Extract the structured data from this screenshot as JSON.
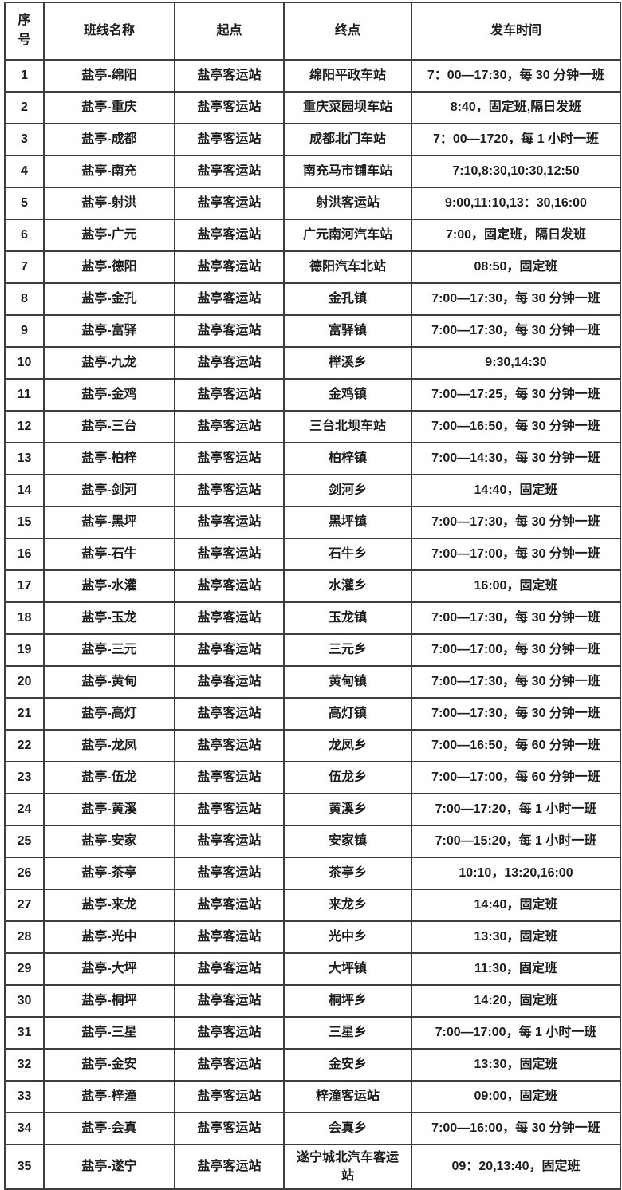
{
  "table": {
    "headers": {
      "serial": "序号",
      "route_name": "班线名称",
      "origin": "起点",
      "destination": "终点",
      "departure_time": "发车时间"
    },
    "rows": [
      {
        "no": "1",
        "route": "盐亭-绵阳",
        "origin": "盐亭客运站",
        "destination": "绵阳平政车站",
        "time": "7：00—17:30，每 30 分钟一班"
      },
      {
        "no": "2",
        "route": "盐亭-重庆",
        "origin": "盐亭客运站",
        "destination": "重庆菜园坝车站",
        "time": "8:40，固定班,隔日发班"
      },
      {
        "no": "3",
        "route": "盐亭-成都",
        "origin": "盐亭客运站",
        "destination": "成都北门车站",
        "time": "7：00—1720，每 1 小时一班"
      },
      {
        "no": "4",
        "route": "盐亭-南充",
        "origin": "盐亭客运站",
        "destination": "南充马市铺车站",
        "time": "7:10,8:30,10:30,12:50"
      },
      {
        "no": "5",
        "route": "盐亭-射洪",
        "origin": "盐亭客运站",
        "destination": "射洪客运站",
        "time": "9:00,11:10,13：30,16:00"
      },
      {
        "no": "6",
        "route": "盐亭-广元",
        "origin": "盐亭客运站",
        "destination": "广元南河汽车站",
        "time": "7:00，固定班，隔日发班"
      },
      {
        "no": "7",
        "route": "盐亭-德阳",
        "origin": "盐亭客运站",
        "destination": "德阳汽车北站",
        "time": "08:50，固定班"
      },
      {
        "no": "8",
        "route": "盐亭-金孔",
        "origin": "盐亭客运站",
        "destination": "金孔镇",
        "time": "7:00—17:30，每 30 分钟一班"
      },
      {
        "no": "9",
        "route": "盐亭-富驿",
        "origin": "盐亭客运站",
        "destination": "富驿镇",
        "time": "7:00—17:30，每 30 分钟一班"
      },
      {
        "no": "10",
        "route": "盐亭-九龙",
        "origin": "盐亭客运站",
        "destination": "榉溪乡",
        "time": "9:30,14:30"
      },
      {
        "no": "11",
        "route": "盐亭-金鸡",
        "origin": "盐亭客运站",
        "destination": "金鸡镇",
        "time": "7:00—17:25，每 30 分钟一班"
      },
      {
        "no": "12",
        "route": "盐亭-三台",
        "origin": "盐亭客运站",
        "destination": "三台北坝车站",
        "time": "7:00—16:50，每 30 分钟一班"
      },
      {
        "no": "13",
        "route": "盐亭-柏梓",
        "origin": "盐亭客运站",
        "destination": "柏梓镇",
        "time": "7:00—14:30，每 30 分钟一班"
      },
      {
        "no": "14",
        "route": "盐亭-剑河",
        "origin": "盐亭客运站",
        "destination": "剑河乡",
        "time": "14:40，固定班"
      },
      {
        "no": "15",
        "route": "盐亭-黑坪",
        "origin": "盐亭客运站",
        "destination": "黑坪镇",
        "time": "7:00—17:30，每 30 分钟一班"
      },
      {
        "no": "16",
        "route": "盐亭-石牛",
        "origin": "盐亭客运站",
        "destination": "石牛乡",
        "time": "7:00—17:00，每 30 分钟一班"
      },
      {
        "no": "17",
        "route": "盐亭-水灌",
        "origin": "盐亭客运站",
        "destination": "水灌乡",
        "time": "16:00，固定班"
      },
      {
        "no": "18",
        "route": "盐亭-玉龙",
        "origin": "盐亭客运站",
        "destination": "玉龙镇",
        "time": "7:00—17:30，每 30 分钟一班"
      },
      {
        "no": "19",
        "route": "盐亭-三元",
        "origin": "盐亭客运站",
        "destination": "三元乡",
        "time": "7:00—17:00，每 30 分钟一班"
      },
      {
        "no": "20",
        "route": "盐亭-黄甸",
        "origin": "盐亭客运站",
        "destination": "黄甸镇",
        "time": "7:00—17:30，每 30 分钟一班"
      },
      {
        "no": "21",
        "route": "盐亭-高灯",
        "origin": "盐亭客运站",
        "destination": "高灯镇",
        "time": "7:00—17:30，每 30 分钟一班"
      },
      {
        "no": "22",
        "route": "盐亭-龙凤",
        "origin": "盐亭客运站",
        "destination": "龙凤乡",
        "time": "7:00—16:50，每 60 分钟一班"
      },
      {
        "no": "23",
        "route": "盐亭-伍龙",
        "origin": "盐亭客运站",
        "destination": "伍龙乡",
        "time": "7:00—17:00，每 60 分钟一班"
      },
      {
        "no": "24",
        "route": "盐亭-黄溪",
        "origin": "盐亭客运站",
        "destination": "黄溪乡",
        "time": "7:00—17:20，每 1 小时一班"
      },
      {
        "no": "25",
        "route": "盐亭-安家",
        "origin": "盐亭客运站",
        "destination": "安家镇",
        "time": "7:00—15:20，每 1 小时一班"
      },
      {
        "no": "26",
        "route": "盐亭-茶亭",
        "origin": "盐亭客运站",
        "destination": "茶亭乡",
        "time": "10:10，13:20,16:00"
      },
      {
        "no": "27",
        "route": "盐亭-来龙",
        "origin": "盐亭客运站",
        "destination": "来龙乡",
        "time": "14:40，固定班"
      },
      {
        "no": "28",
        "route": "盐亭-光中",
        "origin": "盐亭客运站",
        "destination": "光中乡",
        "time": "13:30，固定班"
      },
      {
        "no": "29",
        "route": "盐亭-大坪",
        "origin": "盐亭客运站",
        "destination": "大坪镇",
        "time": "11:30，固定班"
      },
      {
        "no": "30",
        "route": "盐亭-桐坪",
        "origin": "盐亭客运站",
        "destination": "桐坪乡",
        "time": "14:20，固定班"
      },
      {
        "no": "31",
        "route": "盐亭-三星",
        "origin": "盐亭客运站",
        "destination": "三星乡",
        "time": "7:00—17:00，每 1 小时一班"
      },
      {
        "no": "32",
        "route": "盐亭-金安",
        "origin": "盐亭客运站",
        "destination": "金安乡",
        "time": "13:30，固定班"
      },
      {
        "no": "33",
        "route": "盐亭-梓潼",
        "origin": "盐亭客运站",
        "destination": "梓潼客运站",
        "time": "09:00，固定班"
      },
      {
        "no": "34",
        "route": "盐亭-会真",
        "origin": "盐亭客运站",
        "destination": "会真乡",
        "time": "7:00—16:00，每 30 分钟一班"
      },
      {
        "no": "35",
        "route": "盐亭-遂宁",
        "origin": "盐亭客运站",
        "destination": "遂宁城北汽车客运站",
        "time": "09：20,13:40，固定班"
      }
    ]
  },
  "colors": {
    "border": "#3d3d3d",
    "text": "#1c1c1c",
    "background": "#ffffff"
  }
}
